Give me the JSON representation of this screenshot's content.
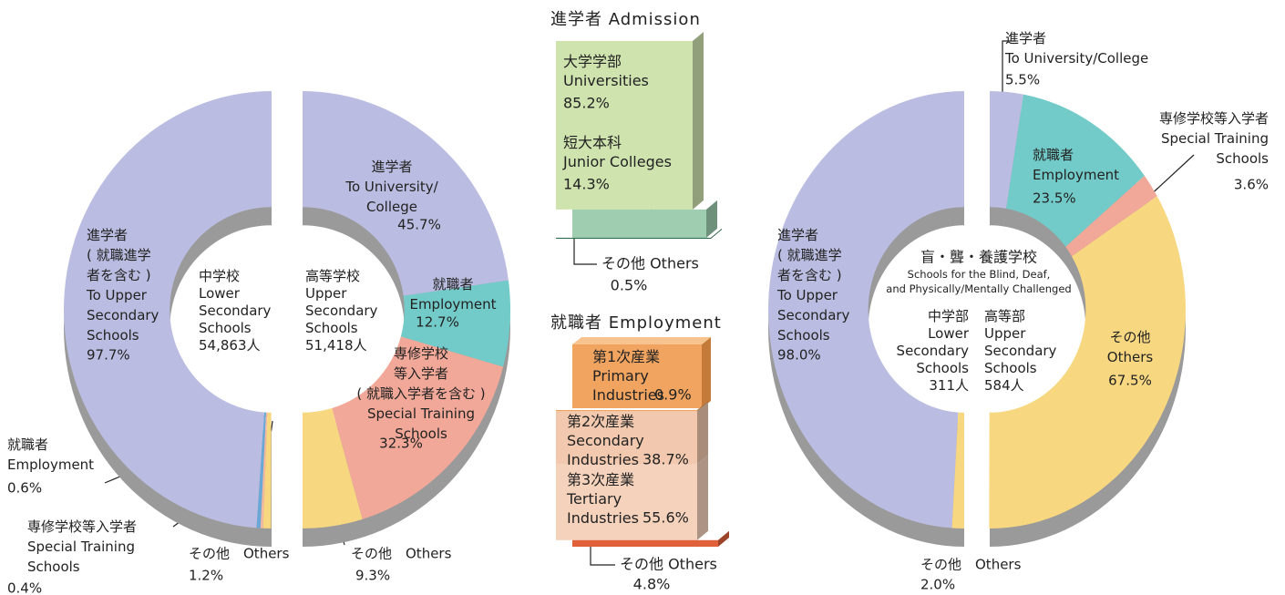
{
  "chart_data": [
    {
      "type": "pie",
      "center_label": "中学校\nLower\nSecondary\nSchools\n54,863人",
      "categories": [
        "進学者\n( 就職進学\n者を含む )\nTo Upper\nSecondary\nSchools",
        "就職者\nEmployment",
        "専修学校等入学者\nSpecial Training\nSchools",
        "その他　Others"
      ],
      "values": [
        97.7,
        0.6,
        0.4,
        1.2
      ],
      "value_labels": [
        "97.7%",
        "0.6%",
        "0.4%",
        "1.2%"
      ],
      "colors": [
        "#babde1",
        "#6aa8d8",
        "#f2b8a0",
        "#f7d780"
      ]
    },
    {
      "type": "pie",
      "center_label": "高等学校\nUpper\nSecondary\nSchools\n51,418人",
      "categories": [
        "進学者\nTo University/\nCollege",
        "就職者\nEmployment",
        "専修学校\n等入学者\n( 就職入学者を含む )\nSpecial Training\nSchools",
        "その他　Others"
      ],
      "values": [
        45.7,
        12.7,
        32.3,
        9.3
      ],
      "value_labels": [
        "45.7%",
        "12.7%",
        "32.3%",
        "9.3%"
      ],
      "colors": [
        "#babde1",
        "#72cbc8",
        "#f1a898",
        "#f7d780"
      ]
    },
    {
      "type": "bar",
      "title": "進学者 Admission",
      "categories": [
        "大学学部\nUniversities",
        "短大本科\nJunior Colleges",
        "その他 Others"
      ],
      "values": [
        85.2,
        14.3,
        0.5
      ],
      "value_labels": [
        "85.2%",
        "14.3%",
        "0.5%"
      ],
      "colors": [
        "#cfe3af",
        "#9fcdb0",
        "#2d6e4e"
      ]
    },
    {
      "type": "bar",
      "title": "就職者 Employment",
      "categories": [
        "第1次産業\nPrimary\nIndustries",
        "第2次産業\nSecondary\nIndustries",
        "第3次産業\nTertiary\nIndustries",
        "その他 Others"
      ],
      "values": [
        0.9,
        38.7,
        55.6,
        4.8
      ],
      "value_labels": [
        "0.9%",
        "38.7%",
        "55.6%",
        "4.8%"
      ],
      "colors": [
        "#f0a460",
        "#f2c9ae",
        "#f5d2bc",
        "#e0603a"
      ]
    },
    {
      "type": "pie",
      "title": "盲・聾・養護学校",
      "subtitle": "Schools for the Blind, Deaf,\nand Physically/Mentally Challenged",
      "center_label": "中学部\nLower\nSecondary\nSchools\n311人",
      "categories": [
        "進学者\n( 就職進学\n者を含む )\nTo Upper\nSecondary\nSchools",
        "その他　Others"
      ],
      "values": [
        98.0,
        2.0
      ],
      "value_labels": [
        "98.0%",
        "2.0%"
      ],
      "colors": [
        "#babde1",
        "#f7d780"
      ]
    },
    {
      "type": "pie",
      "center_label": "高等部\nUpper\nSecondary\nSchools\n584人",
      "categories": [
        "進学者\nTo University/College",
        "就職者\nEmployment",
        "専修学校等入学者\nSpecial Training\nSchools",
        "その他\nOthers"
      ],
      "values": [
        5.5,
        23.5,
        3.6,
        67.5
      ],
      "value_labels": [
        "5.5%",
        "23.5%",
        "3.6%",
        "67.5%"
      ],
      "colors": [
        "#babde1",
        "#72cbc8",
        "#f1a898",
        "#f7d780"
      ]
    }
  ]
}
